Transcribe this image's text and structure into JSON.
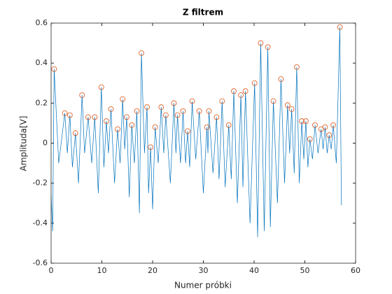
{
  "chart_data": {
    "type": "line",
    "title": "Z filtrem",
    "x_label": "Numer próbki",
    "y_label": "Amplituda[V]",
    "xlim": [
      0,
      60
    ],
    "xticks": [
      0,
      10,
      20,
      30,
      40,
      50,
      60
    ],
    "ylim": [
      -0.6,
      0.6
    ],
    "yticks": [
      -0.6,
      -0.4,
      -0.2,
      0,
      0.2,
      0.4,
      0.6
    ],
    "series": [
      {
        "type": "line",
        "color": "#0072BD",
        "x": [
          0,
          0.3,
          0.6,
          1.5,
          2.7,
          3.2,
          3.7,
          4.2,
          4.8,
          5.4,
          6.1,
          6.6,
          7.3,
          8.0,
          8.6,
          9.3,
          9.9,
          10.4,
          10.9,
          11.3,
          11.8,
          12.5,
          13.1,
          13.6,
          14.1,
          14.5,
          14.9,
          15.4,
          15.9,
          16.4,
          16.9,
          17.4,
          17.8,
          18.4,
          18.9,
          19.2,
          19.6,
          20.0,
          20.5,
          21.1,
          21.7,
          22.2,
          22.6,
          23.5,
          24.2,
          24.6,
          24.9,
          25.5,
          26.0,
          26.5,
          26.9,
          27.3,
          27.8,
          28.5,
          29.2,
          30.0,
          30.7,
          30.9,
          31.1,
          31.9,
          32.6,
          33.1,
          33.7,
          34.3,
          35.0,
          35.5,
          36.0,
          36.7,
          37.4,
          37.8,
          38.3,
          39.2,
          40.1,
          40.7,
          41.3,
          42.0,
          42.7,
          43.2,
          43.8,
          44.6,
          45.3,
          46.0,
          46.6,
          47.0,
          47.4,
          47.9,
          48.4,
          48.9,
          49.4,
          49.8,
          50.2,
          50.6,
          51.0,
          51.5,
          52.0,
          52.6,
          53.2,
          53.6,
          54.0,
          54.4,
          54.8,
          55.2,
          55.6,
          56.2,
          56.9,
          57.2
        ],
        "values": [
          -0.26,
          -0.44,
          0.37,
          -0.1,
          0.15,
          -0.05,
          0.14,
          -0.12,
          0.05,
          -0.2,
          0.24,
          -0.05,
          0.13,
          -0.1,
          0.13,
          -0.25,
          0.28,
          -0.12,
          0.11,
          -0.05,
          0.17,
          -0.2,
          0.07,
          -0.1,
          0.22,
          -0.03,
          0.13,
          -0.27,
          0.09,
          -0.1,
          0.16,
          -0.35,
          0.45,
          -0.05,
          0.18,
          -0.25,
          -0.02,
          -0.33,
          0.08,
          -0.1,
          0.18,
          -0.05,
          0.14,
          -0.2,
          0.2,
          -0.05,
          0.14,
          -0.1,
          0.16,
          -0.1,
          0.06,
          -0.12,
          0.21,
          -0.08,
          0.16,
          -0.25,
          0.08,
          -0.05,
          0.16,
          -0.15,
          0.13,
          -0.18,
          0.21,
          -0.22,
          0.09,
          -0.18,
          0.26,
          -0.3,
          0.24,
          -0.22,
          0.26,
          -0.4,
          0.3,
          -0.47,
          0.5,
          -0.44,
          0.48,
          -0.42,
          0.21,
          -0.3,
          0.32,
          -0.2,
          0.19,
          -0.05,
          0.17,
          -0.15,
          0.38,
          -0.2,
          0.11,
          -0.08,
          0.11,
          -0.12,
          0.02,
          -0.08,
          0.09,
          -0.05,
          0.07,
          -0.03,
          0.08,
          -0.05,
          0.04,
          -0.03,
          0.09,
          -0.1,
          0.58,
          -0.31
        ]
      },
      {
        "type": "scatter",
        "color": "#D95319",
        "x": [
          0.6,
          2.7,
          3.7,
          4.8,
          6.1,
          7.3,
          8.6,
          9.9,
          10.9,
          11.8,
          13.1,
          14.1,
          14.9,
          15.9,
          16.9,
          17.8,
          18.9,
          19.6,
          20.5,
          21.7,
          22.6,
          24.2,
          24.9,
          26.0,
          26.9,
          27.8,
          29.2,
          30.7,
          31.1,
          32.6,
          33.7,
          35.0,
          36.0,
          37.4,
          38.3,
          40.1,
          41.3,
          42.7,
          43.8,
          45.3,
          46.6,
          47.4,
          48.4,
          49.4,
          50.2,
          51.0,
          52.0,
          53.2,
          54.0,
          54.8,
          55.6,
          56.9
        ],
        "values": [
          0.37,
          0.15,
          0.14,
          0.05,
          0.24,
          0.13,
          0.13,
          0.28,
          0.11,
          0.17,
          0.07,
          0.22,
          0.13,
          0.09,
          0.16,
          0.45,
          0.18,
          -0.02,
          0.08,
          0.18,
          0.14,
          0.2,
          0.14,
          0.16,
          0.06,
          0.21,
          0.16,
          0.08,
          0.16,
          0.13,
          0.21,
          0.09,
          0.26,
          0.24,
          0.26,
          0.3,
          0.5,
          0.48,
          0.21,
          0.32,
          0.19,
          0.17,
          0.38,
          0.11,
          0.11,
          0.02,
          0.09,
          0.07,
          0.08,
          0.04,
          0.09,
          0.58
        ]
      }
    ]
  }
}
